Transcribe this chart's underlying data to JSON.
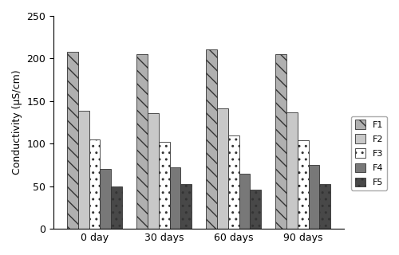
{
  "categories": [
    "0 day",
    "30 days",
    "60 days",
    "90 days"
  ],
  "series": {
    "F1": [
      208,
      205,
      211,
      205
    ],
    "F2": [
      139,
      136,
      141,
      137
    ],
    "F3": [
      105,
      102,
      110,
      104
    ],
    "F4": [
      70,
      72,
      65,
      75
    ],
    "F5": [
      50,
      53,
      46,
      53
    ]
  },
  "ylabel": "Conductivity (μS/cm)",
  "ylim": [
    0,
    250
  ],
  "yticks": [
    0,
    50,
    100,
    150,
    200,
    250
  ],
  "bar_width": 0.16,
  "legend_labels": [
    "F1",
    "F2",
    "F3",
    "F4",
    "F5"
  ]
}
